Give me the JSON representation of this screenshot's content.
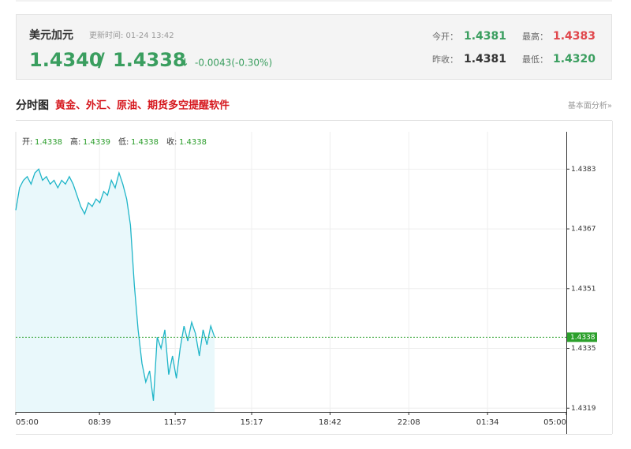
{
  "header": {
    "name": "美元加元",
    "update_time": "更新时间: 01-24 13:42",
    "bid": "1.4340",
    "sep": "/",
    "ask": "1.4338",
    "arrow": "↓",
    "change": "-0.0043(-0.30%)",
    "open_label": "今开：",
    "open": "1.4381",
    "high_label": "最高：",
    "high": "1.4383",
    "prev_label": "昨收：",
    "prev": "1.4381",
    "low_label": "最低：",
    "low": "1.4320"
  },
  "section": {
    "title": "分时图",
    "promo": "黄金、外汇、原油、期货多空提醒软件",
    "link": "基本面分析»"
  },
  "chart_data": {
    "type": "line",
    "color": "#1fb5c8",
    "area_color": "#e9f8fb",
    "grid": true,
    "info": [
      {
        "label": "开:",
        "text": "1.4338"
      },
      {
        "label": "高:",
        "text": "1.4339"
      },
      {
        "label": "低:",
        "text": "1.4338"
      },
      {
        "label": "收:",
        "text": "1.4338"
      }
    ],
    "x": [
      "05:00",
      "05:10",
      "05:20",
      "05:30",
      "05:40",
      "05:50",
      "06:00",
      "06:10",
      "06:20",
      "06:30",
      "06:40",
      "06:50",
      "07:00",
      "07:10",
      "07:20",
      "07:30",
      "07:40",
      "07:50",
      "08:00",
      "08:10",
      "08:20",
      "08:30",
      "08:40",
      "08:50",
      "09:00",
      "09:10",
      "09:20",
      "09:30",
      "09:40",
      "09:50",
      "10:00",
      "10:10",
      "10:20",
      "10:30",
      "10:40",
      "10:50",
      "11:00",
      "11:10",
      "11:20",
      "11:30",
      "11:40",
      "11:50",
      "12:00",
      "12:10",
      "12:20",
      "12:30",
      "12:40",
      "12:50",
      "13:00",
      "13:10",
      "13:20",
      "13:30",
      "13:40"
    ],
    "values": [
      1.4372,
      1.4378,
      1.438,
      1.4381,
      1.4379,
      1.4382,
      1.4383,
      1.438,
      1.4381,
      1.4379,
      1.438,
      1.4378,
      1.438,
      1.4379,
      1.4381,
      1.4379,
      1.4376,
      1.4373,
      1.4371,
      1.4374,
      1.4373,
      1.4375,
      1.4374,
      1.4377,
      1.4376,
      1.438,
      1.4378,
      1.4382,
      1.4379,
      1.4375,
      1.4368,
      1.4352,
      1.434,
      1.4331,
      1.4326,
      1.4329,
      1.4321,
      1.4338,
      1.4335,
      1.434,
      1.4328,
      1.4333,
      1.4327,
      1.4335,
      1.4341,
      1.4337,
      1.4342,
      1.4339,
      1.4333,
      1.434,
      1.4336,
      1.4341,
      1.4338
    ],
    "xticks": [
      "05:00",
      "08:39",
      "11:57",
      "15:17",
      "18:42",
      "22:08",
      "01:34",
      "05:00"
    ],
    "ylim": [
      1.4318,
      1.4393
    ],
    "yticks": [
      1.4319,
      1.4335,
      1.4351,
      1.4367,
      1.4383
    ],
    "last": 1.4338,
    "last_color": "#2ca02c"
  }
}
